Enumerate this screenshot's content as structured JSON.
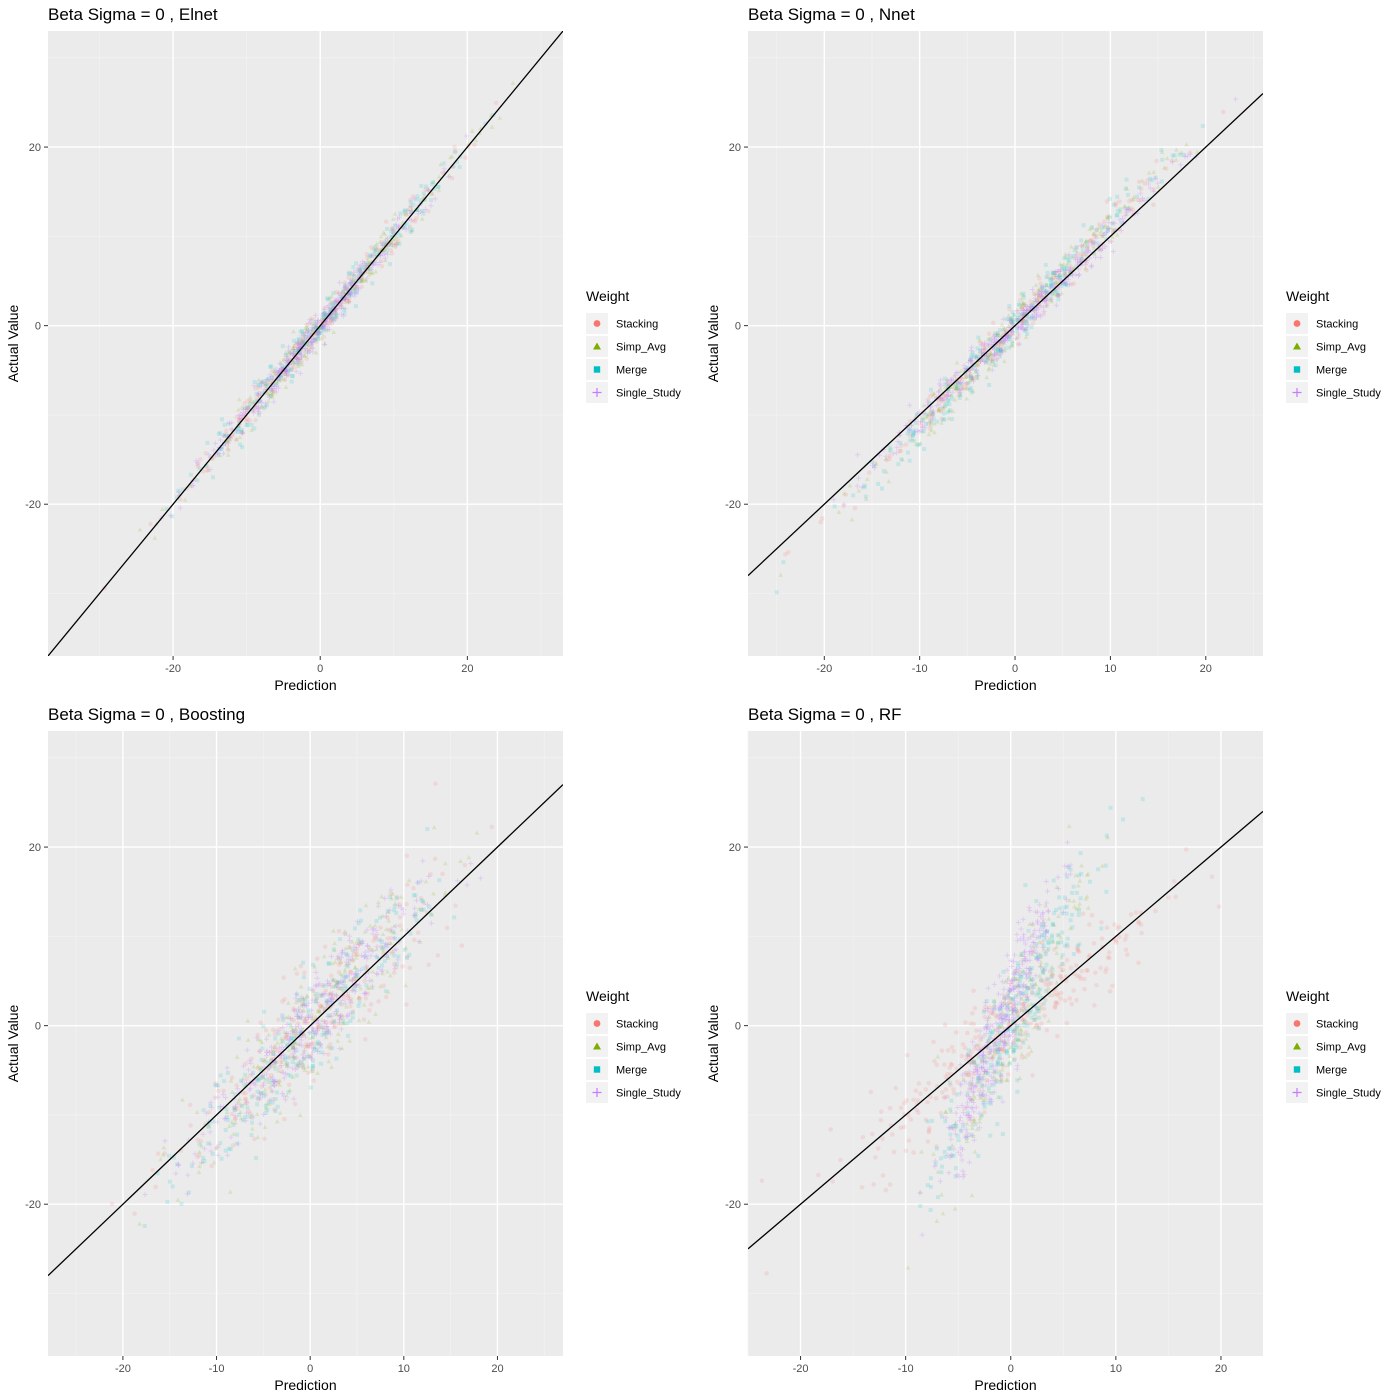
{
  "chart_data": [
    {
      "type": "scatter",
      "title": "Beta Sigma = 0 , Elnet",
      "xlabel": "Prediction",
      "ylabel": "Actual Value",
      "xlim": [
        -37,
        33
      ],
      "ylim": [
        -37,
        33
      ],
      "xticks": [
        -20,
        0,
        20
      ],
      "yticks": [
        -20,
        0,
        20
      ],
      "grid": true,
      "reference_line": {
        "slope": 1,
        "intercept": 0
      },
      "series": [
        {
          "name": "Stacking",
          "color": "#F8766D",
          "marker": "circle",
          "clouds": [
            {
              "x0": 0,
              "y0": 0,
              "slope": 1.0,
              "spread_x": 9,
              "spread_y": 0.9,
              "n": 220
            }
          ]
        },
        {
          "name": "Simp_Avg",
          "color": "#7CAE00",
          "marker": "triangle",
          "clouds": [
            {
              "x0": 0,
              "y0": 0,
              "slope": 1.0,
              "spread_x": 9,
              "spread_y": 1.0,
              "n": 260
            }
          ]
        },
        {
          "name": "Merge",
          "color": "#00BFC4",
          "marker": "square",
          "clouds": [
            {
              "x0": 0,
              "y0": 0,
              "slope": 1.0,
              "spread_x": 9,
              "spread_y": 1.0,
              "n": 260
            }
          ]
        },
        {
          "name": "Single_Study",
          "color": "#C77CFF",
          "marker": "plus",
          "clouds": [
            {
              "x0": 0,
              "y0": 0,
              "slope": 1.0,
              "spread_x": 8,
              "spread_y": 0.8,
              "n": 360
            }
          ]
        }
      ]
    },
    {
      "type": "scatter",
      "title": "Beta Sigma = 0 , Nnet",
      "xlabel": "Prediction",
      "ylabel": "Actual Value",
      "xlim": [
        -28,
        26
      ],
      "ylim": [
        -37,
        33
      ],
      "xticks": [
        -20,
        -10,
        0,
        10,
        20
      ],
      "yticks": [
        -20,
        0,
        20
      ],
      "grid": true,
      "reference_line": {
        "slope": 1,
        "intercept": 0
      },
      "series": [
        {
          "name": "Stacking",
          "color": "#F8766D",
          "marker": "circle",
          "clouds": [
            {
              "x0": 0,
              "y0": 0,
              "slope": 1.1,
              "spread_x": 8,
              "spread_y": 1.0,
              "n": 220
            }
          ]
        },
        {
          "name": "Simp_Avg",
          "color": "#7CAE00",
          "marker": "triangle",
          "clouds": [
            {
              "x0": 0,
              "y0": 0,
              "slope": 1.15,
              "spread_x": 8,
              "spread_y": 1.2,
              "n": 260
            }
          ]
        },
        {
          "name": "Merge",
          "color": "#00BFC4",
          "marker": "square",
          "clouds": [
            {
              "x0": 0,
              "y0": 0,
              "slope": 1.15,
              "spread_x": 8,
              "spread_y": 1.2,
              "n": 260
            }
          ]
        },
        {
          "name": "Single_Study",
          "color": "#C77CFF",
          "marker": "plus",
          "clouds": [
            {
              "x0": 0,
              "y0": 0,
              "slope": 1.05,
              "spread_x": 7,
              "spread_y": 0.9,
              "n": 360
            }
          ]
        }
      ]
    },
    {
      "type": "scatter",
      "title": "Beta Sigma = 0 , Boosting",
      "xlabel": "Prediction",
      "ylabel": "Actual Value",
      "xlim": [
        -28,
        27
      ],
      "ylim": [
        -37,
        33
      ],
      "xticks": [
        -20,
        -10,
        0,
        10,
        20
      ],
      "yticks": [
        -20,
        0,
        20
      ],
      "grid": true,
      "reference_line": {
        "slope": 1,
        "intercept": 0
      },
      "series": [
        {
          "name": "Stacking",
          "color": "#F8766D",
          "marker": "circle",
          "clouds": [
            {
              "x0": 0,
              "y0": 0,
              "slope": 1.0,
              "spread_x": 7,
              "spread_y": 3.2,
              "n": 260
            }
          ]
        },
        {
          "name": "Simp_Avg",
          "color": "#7CAE00",
          "marker": "triangle",
          "clouds": [
            {
              "x0": 0,
              "y0": 0,
              "slope": 1.15,
              "spread_x": 6.5,
              "spread_y": 3.2,
              "n": 260
            }
          ]
        },
        {
          "name": "Merge",
          "color": "#00BFC4",
          "marker": "square",
          "clouds": [
            {
              "x0": 0,
              "y0": 0,
              "slope": 1.15,
              "spread_x": 6.5,
              "spread_y": 3.2,
              "n": 260
            }
          ]
        },
        {
          "name": "Single_Study",
          "color": "#C77CFF",
          "marker": "plus",
          "clouds": [
            {
              "x0": 0,
              "y0": 0,
              "slope": 1.1,
              "spread_x": 6,
              "spread_y": 2.6,
              "n": 360
            }
          ]
        }
      ]
    },
    {
      "type": "scatter",
      "title": "Beta Sigma = 0 , RF",
      "xlabel": "Prediction",
      "ylabel": "Actual Value",
      "xlim": [
        -25,
        24
      ],
      "ylim": [
        -37,
        33
      ],
      "xticks": [
        -20,
        -10,
        0,
        10,
        20
      ],
      "yticks": [
        -20,
        0,
        20
      ],
      "grid": true,
      "reference_line": {
        "slope": 1,
        "intercept": 0
      },
      "series": [
        {
          "name": "Stacking",
          "color": "#F8766D",
          "marker": "circle",
          "clouds": [
            {
              "x0": 0,
              "y0": 0,
              "slope": 1.0,
              "spread_x": 7,
              "spread_y": 3.0,
              "n": 320
            }
          ]
        },
        {
          "name": "Simp_Avg",
          "color": "#7CAE00",
          "marker": "triangle",
          "clouds": [
            {
              "x0": 0,
              "y0": 0,
              "slope": 2.3,
              "spread_x": 3.5,
              "spread_y": 3.5,
              "n": 200
            }
          ]
        },
        {
          "name": "Merge",
          "color": "#00BFC4",
          "marker": "square",
          "clouds": [
            {
              "x0": 0,
              "y0": 0,
              "slope": 2.3,
              "spread_x": 3.8,
              "spread_y": 3.5,
              "n": 280
            }
          ]
        },
        {
          "name": "Single_Study",
          "color": "#C77CFF",
          "marker": "plus",
          "clouds": [
            {
              "x0": -1,
              "y0": 0,
              "slope": 2.8,
              "spread_x": 2.6,
              "spread_y": 3.0,
              "n": 380
            }
          ]
        }
      ]
    }
  ],
  "legend": {
    "title": "Weight",
    "items": [
      {
        "label": "Stacking",
        "color": "#F8766D",
        "marker": "circle"
      },
      {
        "label": "Simp_Avg",
        "color": "#7CAE00",
        "marker": "triangle"
      },
      {
        "label": "Merge",
        "color": "#00BFC4",
        "marker": "square"
      },
      {
        "label": "Single_Study",
        "color": "#C77CFF",
        "marker": "plus"
      }
    ]
  }
}
